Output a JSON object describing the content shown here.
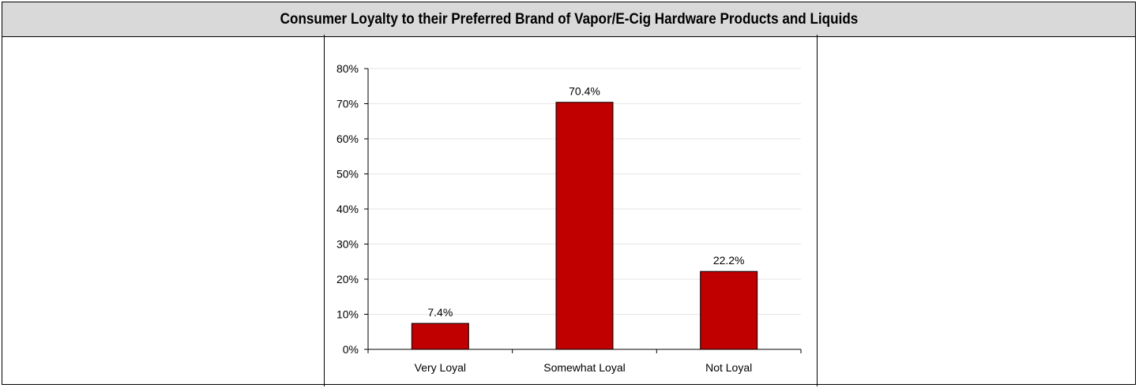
{
  "title": "Consumer Loyalty to their Preferred Brand of Vapor/E-Cig Hardware Products and Liquids",
  "colors": {
    "bar": "#c00000",
    "gridline": "#e6e6e6",
    "title_bg": "#d9d9d9"
  },
  "chart_data": {
    "type": "bar",
    "title": "Consumer Loyalty to their Preferred Brand of Vapor/E-Cig Hardware Products and Liquids",
    "categories": [
      "Very Loyal",
      "Somewhat Loyal",
      "Not Loyal"
    ],
    "values": [
      7.4,
      70.4,
      22.2
    ],
    "value_labels": [
      "7.4%",
      "70.4%",
      "22.2%"
    ],
    "ylim": [
      0,
      80
    ],
    "yticks": [
      0,
      10,
      20,
      30,
      40,
      50,
      60,
      70,
      80
    ],
    "ytick_labels": [
      "0%",
      "10%",
      "20%",
      "30%",
      "40%",
      "50%",
      "60%",
      "70%",
      "80%"
    ],
    "xlabel": "",
    "ylabel": "",
    "grid": true,
    "legend": "none"
  }
}
